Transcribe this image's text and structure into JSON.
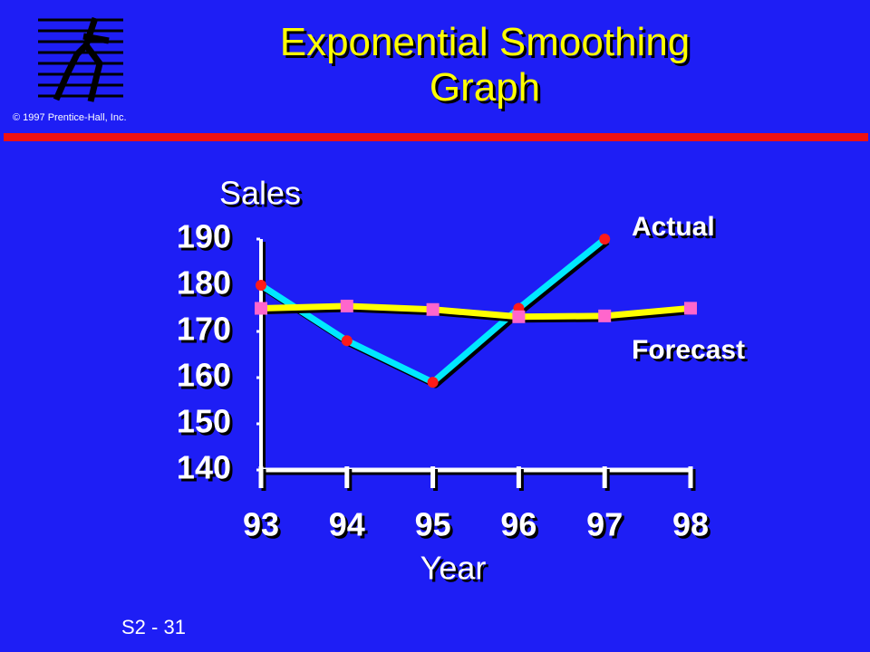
{
  "copyright": "© 1997 Prentice-Hall, Inc.",
  "slide_number": "S2 - 31",
  "chart_data": {
    "type": "line",
    "title": "Exponential Smoothing Graph",
    "y_label": "Sales",
    "x_label": "Year",
    "categories": [
      "93",
      "94",
      "95",
      "96",
      "97",
      "98"
    ],
    "series": [
      {
        "name": "Actual",
        "color": "#00e8ff",
        "marker_color": "#ff1a1a",
        "marker": "circle",
        "values": [
          180,
          168,
          159,
          175,
          190,
          null
        ]
      },
      {
        "name": "Forecast",
        "color": "#ffff00",
        "marker_color": "#ff66cc",
        "marker": "square",
        "values": [
          175,
          175.5,
          174.75,
          173.18,
          173.36,
          175.02
        ]
      }
    ],
    "ylim": [
      140,
      190
    ],
    "yticks": [
      140,
      150,
      160,
      170,
      180,
      190
    ]
  }
}
